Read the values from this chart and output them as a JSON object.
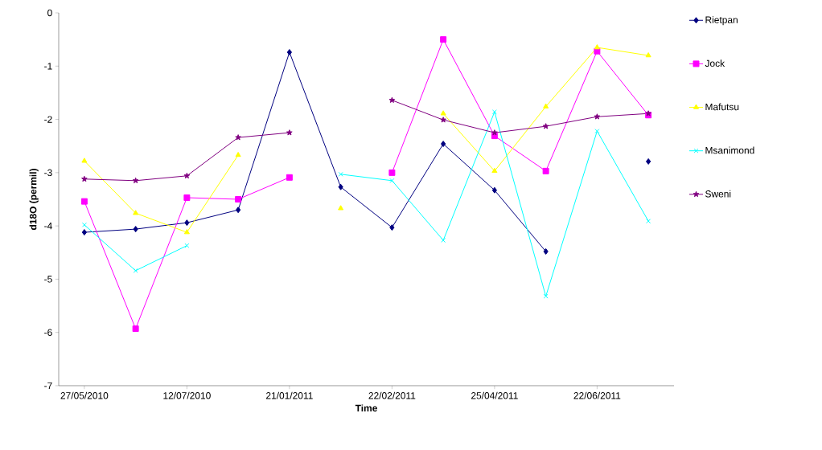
{
  "chart_data": {
    "type": "line",
    "xlabel": "Time",
    "ylabel": "d18O (permil)",
    "categories": [
      "27/05/2010",
      null,
      "12/07/2010",
      null,
      "21/01/2011",
      null,
      "22/02/2011",
      null,
      "25/04/2011",
      null,
      "22/06/2011",
      null
    ],
    "ylim": [
      -7,
      0
    ],
    "yticks": [
      -7,
      -6,
      -5,
      -4,
      -3,
      -2,
      -1,
      0
    ],
    "grid": false,
    "legend": "right",
    "series": [
      {
        "name": "Rietpan",
        "color": "#000080",
        "marker": "diamond",
        "values": [
          -4.12,
          -4.06,
          -3.94,
          -3.7,
          -0.74,
          -3.27,
          -4.03,
          -2.46,
          -3.33,
          -4.48,
          null,
          -2.79
        ]
      },
      {
        "name": "Jock",
        "color": "#ff00ff",
        "marker": "square",
        "values": [
          -3.54,
          -5.93,
          -3.47,
          -3.5,
          -3.09,
          null,
          -3.0,
          -0.5,
          -2.31,
          -2.97,
          -0.72,
          -1.92
        ]
      },
      {
        "name": "Mafutsu",
        "color": "#ffff00",
        "marker": "triangle",
        "values": [
          -2.78,
          -3.76,
          -4.12,
          -2.67,
          null,
          -3.67,
          null,
          -1.89,
          -2.97,
          -1.76,
          -0.65,
          -0.8
        ]
      },
      {
        "name": "Msanimond",
        "color": "#00ffff",
        "marker": "cross",
        "values": [
          -3.98,
          -4.84,
          -4.37,
          null,
          null,
          -3.03,
          -3.15,
          -4.27,
          -1.86,
          -5.32,
          -2.22,
          -3.91
        ]
      },
      {
        "name": "Sweni",
        "color": "#800080",
        "marker": "star",
        "values": [
          -3.12,
          -3.15,
          -3.06,
          -2.34,
          -2.25,
          null,
          -1.64,
          -2.01,
          -2.25,
          -2.13,
          -1.95,
          -1.89
        ]
      }
    ]
  }
}
